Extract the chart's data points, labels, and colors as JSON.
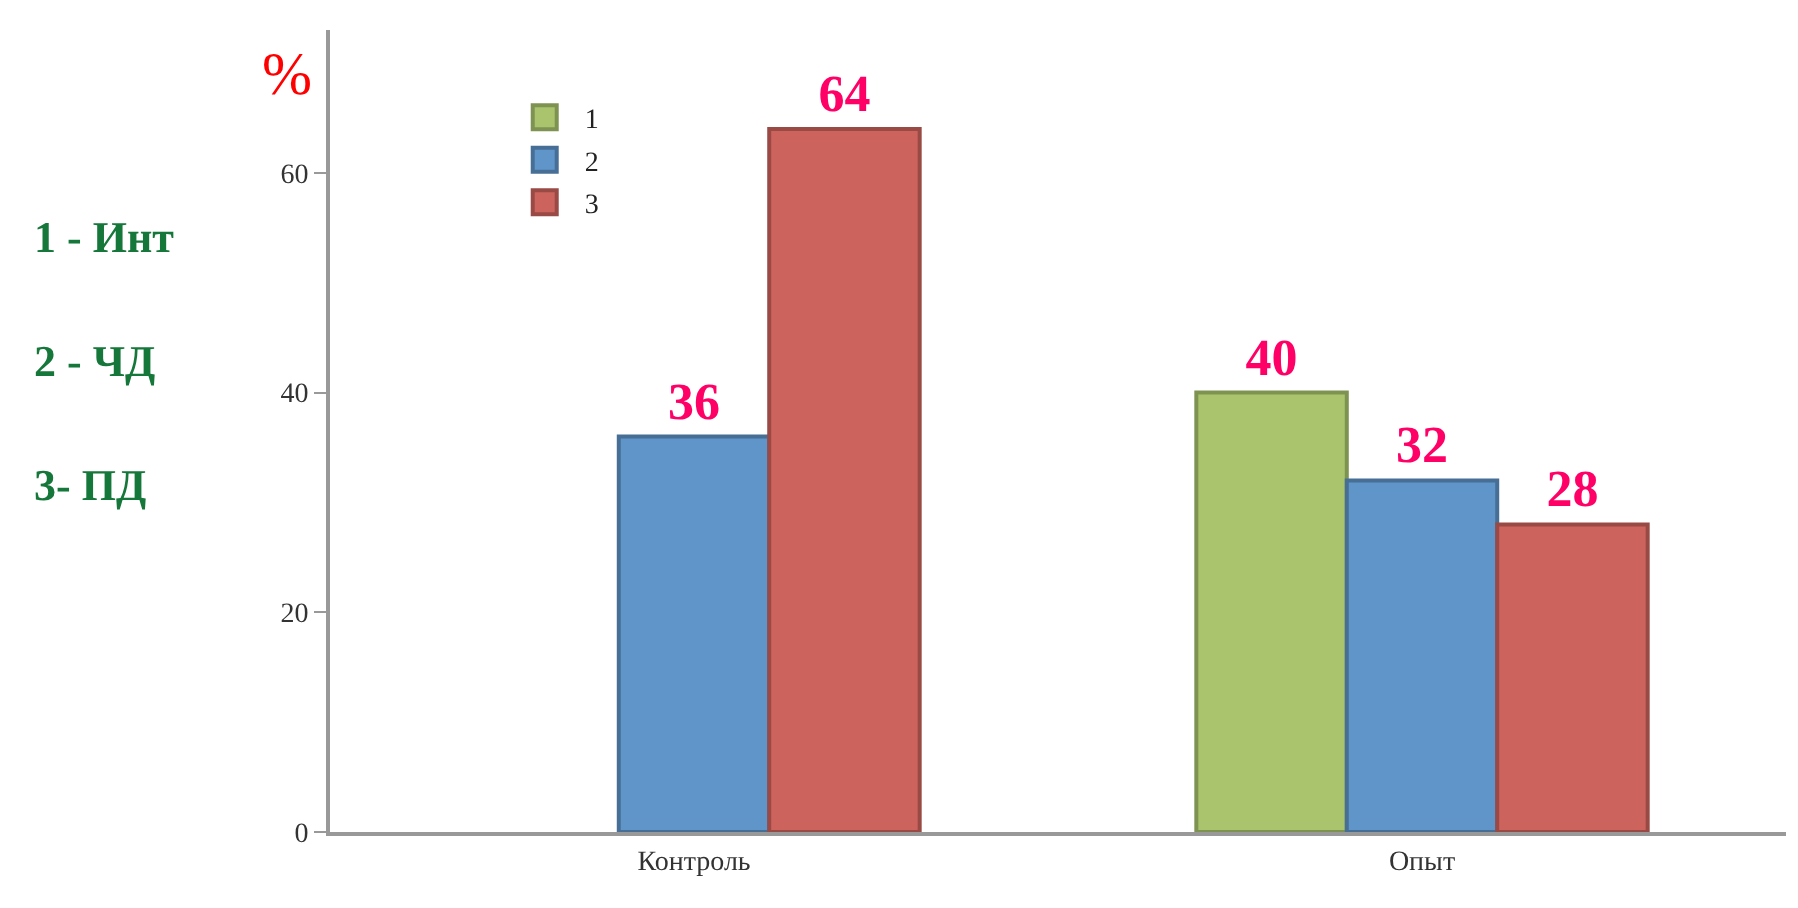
{
  "chart_data": {
    "type": "bar",
    "ylabel": "%",
    "categories": [
      "Контроль",
      "Опыт"
    ],
    "series": [
      {
        "name": "1",
        "color": "#a9c46c",
        "values": [
          null,
          40
        ]
      },
      {
        "name": "2",
        "color": "#5f95c8",
        "values": [
          36,
          32
        ]
      },
      {
        "name": "3",
        "color": "#cd635d",
        "values": [
          64,
          28
        ]
      }
    ],
    "ylim": [
      0,
      73
    ],
    "yticks": [
      0,
      20,
      40,
      60
    ],
    "legend": "top left",
    "data_labels": true,
    "annotations": [
      "1 - Инт",
      "2 - ЧД",
      "3- ПД"
    ]
  }
}
